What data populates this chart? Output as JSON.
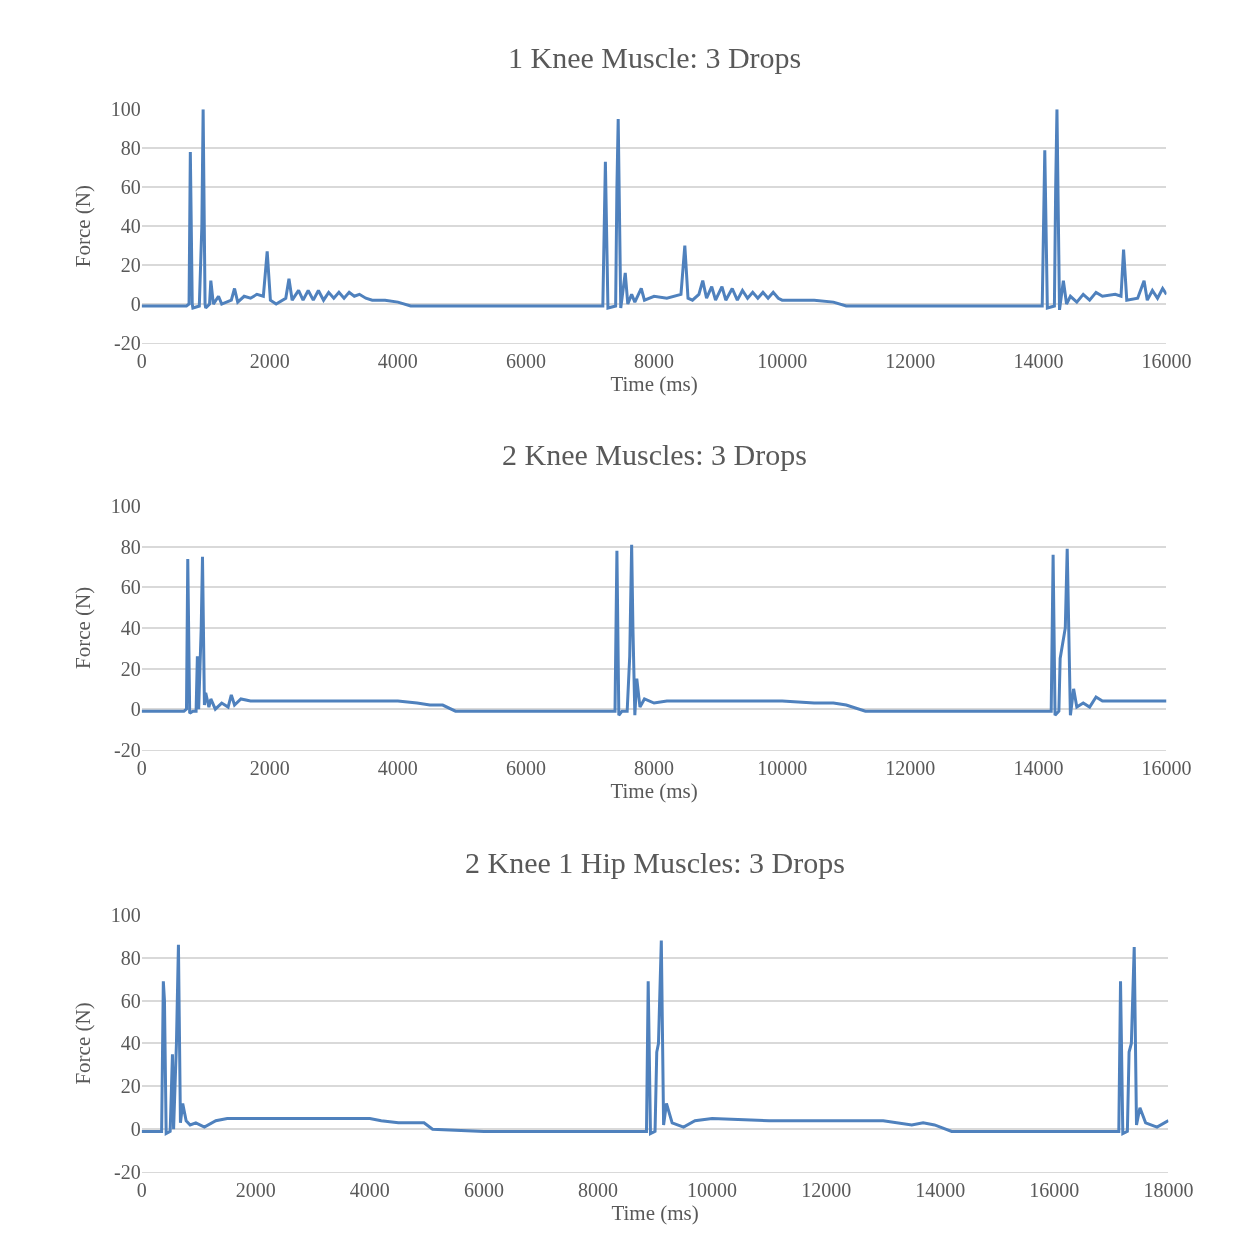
{
  "chart_data": [
    {
      "type": "line",
      "title": "1 Knee Muscle: 3 Drops",
      "xlabel": "Time (ms)",
      "ylabel": "Force (N)",
      "xlim": [
        0,
        16000
      ],
      "xticks": [
        0,
        2000,
        4000,
        6000,
        8000,
        10000,
        12000,
        14000,
        16000
      ],
      "ylim": [
        -20,
        100
      ],
      "yticks": [
        -20,
        0,
        20,
        40,
        60,
        80,
        100
      ],
      "grid": "y",
      "series": [
        {
          "color": "#4f81bd",
          "x": [
            0,
            700,
            740,
            760,
            790,
            800,
            900,
            940,
            960,
            990,
            1000,
            1060,
            1080,
            1120,
            1200,
            1250,
            1400,
            1450,
            1500,
            1600,
            1700,
            1800,
            1900,
            1960,
            2010,
            2100,
            2250,
            2300,
            2350,
            2450,
            2520,
            2600,
            2680,
            2760,
            2840,
            2920,
            3000,
            3080,
            3160,
            3240,
            3320,
            3400,
            3500,
            3600,
            3800,
            4000,
            4200,
            5000,
            6000,
            7000,
            7200,
            7240,
            7280,
            7400,
            7420,
            7440,
            7480,
            7550,
            7590,
            7650,
            7700,
            7800,
            7850,
            8000,
            8200,
            8420,
            8480,
            8530,
            8600,
            8700,
            8760,
            8820,
            8900,
            8960,
            9060,
            9120,
            9220,
            9300,
            9380,
            9460,
            9540,
            9620,
            9700,
            9780,
            9860,
            9940,
            10000,
            10500,
            10800,
            11000,
            12000,
            13000,
            14000,
            14060,
            14100,
            14140,
            14250,
            14270,
            14290,
            14330,
            14390,
            14440,
            14500,
            14600,
            14700,
            14800,
            14900,
            15000,
            15200,
            15290,
            15330,
            15380,
            15550,
            15650,
            15700,
            15780,
            15860,
            15940,
            16000
          ],
          "values": [
            -1,
            -1,
            0,
            78,
            0,
            -2,
            -1,
            40,
            100,
            0,
            -2,
            0,
            12,
            0,
            4,
            0,
            2,
            8,
            1,
            4,
            3,
            5,
            4,
            27,
            2,
            0,
            3,
            13,
            2,
            7,
            2,
            7,
            2,
            7,
            2,
            6,
            3,
            6,
            3,
            6,
            4,
            5,
            3,
            2,
            2,
            1,
            -1,
            -1,
            -1,
            -1,
            -1,
            73,
            -2,
            -1,
            60,
            95,
            -2,
            16,
            0,
            5,
            1,
            8,
            2,
            4,
            3,
            5,
            30,
            3,
            2,
            5,
            12,
            3,
            9,
            2,
            9,
            2,
            8,
            2,
            7,
            3,
            6,
            3,
            6,
            3,
            6,
            3,
            2,
            2,
            1,
            -1,
            -1,
            -1,
            -1,
            -1,
            79,
            -2,
            -1,
            60,
            100,
            -3,
            12,
            0,
            4,
            1,
            5,
            2,
            6,
            4,
            5,
            4,
            28,
            2,
            3,
            12,
            2,
            7,
            3,
            8,
            5
          ]
        }
      ]
    },
    {
      "type": "line",
      "title": "2 Knee Muscles: 3 Drops",
      "xlabel": "Time (ms)",
      "ylabel": "Force (N)",
      "xlim": [
        0,
        16000
      ],
      "xticks": [
        0,
        2000,
        4000,
        6000,
        8000,
        10000,
        12000,
        14000,
        16000
      ],
      "ylim": [
        -20,
        100
      ],
      "yticks": [
        -20,
        0,
        20,
        40,
        60,
        80,
        100
      ],
      "grid": "y",
      "series": [
        {
          "color": "#4f81bd",
          "x": [
            0,
            660,
            700,
            720,
            750,
            800,
            850,
            870,
            890,
            930,
            950,
            980,
            1000,
            1050,
            1080,
            1150,
            1250,
            1350,
            1400,
            1450,
            1550,
            1700,
            2500,
            3500,
            4000,
            4300,
            4500,
            4700,
            4900,
            5500,
            6500,
            7000,
            7390,
            7420,
            7450,
            7500,
            7580,
            7620,
            7650,
            7670,
            7700,
            7730,
            7780,
            7850,
            8000,
            8200,
            9000,
            10000,
            10500,
            10800,
            11000,
            11300,
            12000,
            13000,
            14000,
            14200,
            14230,
            14260,
            14320,
            14340,
            14420,
            14450,
            14500,
            14550,
            14600,
            14700,
            14800,
            14900,
            15000,
            15500,
            16000
          ],
          "values": [
            -1,
            -1,
            0,
            74,
            -2,
            -1,
            -1,
            26,
            0,
            40,
            75,
            2,
            8,
            1,
            5,
            0,
            3,
            1,
            7,
            2,
            5,
            4,
            4,
            4,
            4,
            3,
            2,
            2,
            -1,
            -1,
            -1,
            -1,
            -1,
            78,
            -3,
            -1,
            -1,
            26,
            81,
            40,
            -3,
            15,
            1,
            5,
            3,
            4,
            4,
            4,
            3,
            3,
            2,
            -1,
            -1,
            -1,
            -1,
            -1,
            76,
            -3,
            -1,
            25,
            40,
            79,
            -3,
            10,
            1,
            3,
            1,
            6,
            4,
            4,
            4
          ]
        }
      ]
    },
    {
      "type": "line",
      "title": "2 Knee 1 Hip Muscles: 3 Drops",
      "xlabel": "Time (ms)",
      "ylabel": "Force (N)",
      "xlim": [
        0,
        18000
      ],
      "xticks": [
        0,
        2000,
        4000,
        6000,
        8000,
        10000,
        12000,
        14000,
        16000,
        18000
      ],
      "ylim": [
        -20,
        100
      ],
      "yticks": [
        -20,
        0,
        20,
        40,
        60,
        80,
        100
      ],
      "grid": "y",
      "series": [
        {
          "color": "#4f81bd",
          "x": [
            0,
            350,
            380,
            400,
            430,
            500,
            540,
            560,
            610,
            645,
            680,
            720,
            780,
            850,
            950,
            1100,
            1300,
            1500,
            2000,
            3000,
            4000,
            4200,
            4500,
            4800,
            4950,
            5100,
            6000,
            7000,
            8000,
            8850,
            8880,
            8920,
            9000,
            9030,
            9060,
            9110,
            9150,
            9200,
            9300,
            9500,
            9700,
            10000,
            11000,
            12000,
            13000,
            13500,
            13700,
            13900,
            14200,
            15000,
            16000,
            17000,
            17130,
            17160,
            17200,
            17280,
            17310,
            17350,
            17400,
            17440,
            17500,
            17600,
            17800,
            18000
          ],
          "values": [
            -1,
            -1,
            69,
            60,
            -2,
            -1,
            35,
            0,
            40,
            86,
            3,
            12,
            4,
            2,
            3,
            1,
            4,
            5,
            5,
            5,
            5,
            4,
            3,
            3,
            3,
            0,
            -1,
            -1,
            -1,
            -1,
            69,
            -2,
            -1,
            36,
            40,
            88,
            2,
            12,
            3,
            1,
            4,
            5,
            4,
            4,
            4,
            2,
            3,
            2,
            -1,
            -1,
            -1,
            -1,
            -1,
            69,
            -2,
            -1,
            36,
            40,
            85,
            2,
            10,
            3,
            1,
            4
          ]
        }
      ]
    }
  ]
}
